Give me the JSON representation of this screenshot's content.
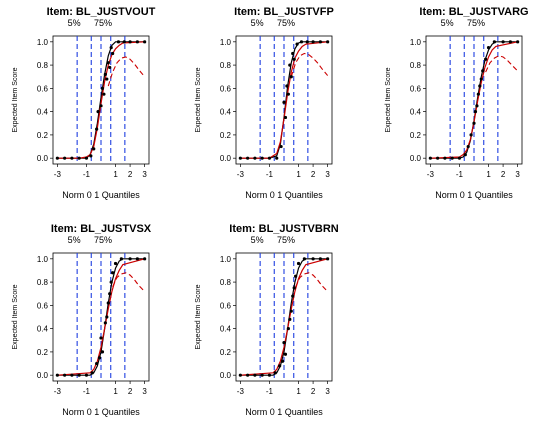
{
  "chart_data": [
    {
      "type": "line",
      "title": "Item:  BL_JUSTVOUT",
      "percentile_labels": [
        "5%",
        "75%"
      ],
      "xlabel": "Norm 0 1 Quantiles",
      "ylabel": "Expected Item Score",
      "x_ticks": [
        "-3",
        "-1",
        "1",
        "2",
        "3"
      ],
      "y_ticks": [
        "0.0",
        "0.2",
        "0.4",
        "0.6",
        "0.8",
        "1.0"
      ],
      "xlim": [
        -3.3,
        3.3
      ],
      "ylim": [
        -0.05,
        1.05
      ],
      "quantile_lines": [
        -1.64,
        -0.67,
        0.0,
        0.67,
        1.64
      ],
      "series": [
        {
          "name": "",
          "color": "#000000",
          "style": "solid",
          "x": [
            -3,
            -1.5,
            -1,
            -0.75,
            -0.5,
            -0.25,
            0,
            0.25,
            0.5,
            0.75,
            1,
            1.25,
            1.5,
            3
          ],
          "y": [
            0,
            0,
            0,
            0.03,
            0.12,
            0.3,
            0.52,
            0.72,
            0.88,
            0.97,
            1,
            1,
            1,
            1
          ]
        },
        {
          "name": "",
          "color": "#cc0000",
          "style": "solid",
          "x": [
            -3,
            -1.5,
            -1,
            -0.75,
            -0.5,
            -0.25,
            0,
            0.25,
            0.5,
            0.75,
            1,
            1.25,
            1.5,
            3
          ],
          "y": [
            0,
            0,
            0.01,
            0.03,
            0.1,
            0.26,
            0.47,
            0.66,
            0.8,
            0.89,
            0.94,
            0.97,
            0.99,
            1
          ]
        },
        {
          "name": "",
          "color": "#cc0000",
          "style": "dashed",
          "x": [
            0.5,
            0.8,
            1.1,
            1.4,
            1.7,
            2.0,
            2.3,
            2.6,
            3.0
          ],
          "y": [
            0.62,
            0.74,
            0.82,
            0.86,
            0.87,
            0.85,
            0.81,
            0.76,
            0.7
          ]
        },
        {
          "name": "",
          "color": "#000000",
          "style": "points",
          "x": [
            -3,
            -2.5,
            -2,
            -1.5,
            -1,
            -0.7,
            -0.5,
            -0.3,
            -0.2,
            0,
            0.1,
            0.2,
            0.3,
            0.4,
            0.5,
            0.6,
            0.7,
            0.8,
            1.2,
            1.6,
            2,
            2.5,
            3
          ],
          "y": [
            0,
            0,
            0,
            0,
            0,
            0.02,
            0.08,
            0.25,
            0.4,
            0.45,
            0.6,
            0.55,
            0.72,
            0.68,
            0.82,
            0.78,
            0.95,
            0.9,
            1,
            1,
            1,
            1,
            1
          ]
        }
      ]
    },
    {
      "type": "line",
      "title": "Item:  BL_JUSTVFP",
      "percentile_labels": [
        "5%",
        "75%"
      ],
      "xlabel": "Norm 0 1 Quantiles",
      "ylabel": "Expected Item Score",
      "x_ticks": [
        "-3",
        "-1",
        "1",
        "2",
        "3"
      ],
      "y_ticks": [
        "0.0",
        "0.2",
        "0.4",
        "0.6",
        "0.8",
        "1.0"
      ],
      "xlim": [
        -3.3,
        3.3
      ],
      "ylim": [
        -0.05,
        1.05
      ],
      "quantile_lines": [
        -1.64,
        -0.67,
        0.0,
        0.67,
        1.64
      ],
      "series": [
        {
          "name": "",
          "color": "#000000",
          "style": "solid",
          "x": [
            -3,
            -1,
            -0.5,
            -0.25,
            0,
            0.25,
            0.5,
            0.75,
            1,
            1.25,
            1.5,
            3
          ],
          "y": [
            0,
            0,
            0.02,
            0.12,
            0.35,
            0.62,
            0.82,
            0.94,
            0.99,
            1,
            1,
            1
          ]
        },
        {
          "name": "",
          "color": "#cc0000",
          "style": "solid",
          "x": [
            -3,
            -1,
            -0.5,
            -0.25,
            0,
            0.25,
            0.5,
            0.75,
            1,
            1.25,
            1.5,
            3
          ],
          "y": [
            0,
            0,
            0.04,
            0.14,
            0.34,
            0.56,
            0.74,
            0.86,
            0.92,
            0.96,
            0.98,
            1
          ]
        },
        {
          "name": "",
          "color": "#cc0000",
          "style": "dashed",
          "x": [
            0.5,
            0.8,
            1.1,
            1.4,
            1.7,
            2.0,
            2.3,
            2.6,
            3.0
          ],
          "y": [
            0.7,
            0.82,
            0.88,
            0.9,
            0.89,
            0.86,
            0.82,
            0.77,
            0.71
          ]
        },
        {
          "name": "",
          "color": "#000000",
          "style": "points",
          "x": [
            -3,
            -2.5,
            -2,
            -1.5,
            -1,
            -0.5,
            -0.2,
            0,
            0.1,
            0.2,
            0.3,
            0.4,
            0.5,
            0.6,
            0.7,
            0.9,
            1.2,
            1.6,
            2,
            2.5,
            3
          ],
          "y": [
            0,
            0,
            0,
            0,
            0,
            0,
            0.1,
            0.48,
            0.35,
            0.62,
            0.55,
            0.8,
            0.7,
            0.9,
            0.85,
            0.98,
            1,
            1,
            1,
            1,
            1
          ]
        }
      ]
    },
    {
      "type": "line",
      "title": "Item:  BL_JUSTVARG",
      "percentile_labels": [
        "5%",
        "75%"
      ],
      "xlabel": "Norm 0 1 Quantiles",
      "ylabel": "Expected Item Score",
      "x_ticks": [
        "-3",
        "-1",
        "1",
        "2",
        "3"
      ],
      "y_ticks": [
        "0.0",
        "0.2",
        "0.4",
        "0.6",
        "0.8",
        "1.0"
      ],
      "xlim": [
        -3.3,
        3.3
      ],
      "ylim": [
        -0.05,
        1.05
      ],
      "quantile_lines": [
        -1.64,
        -0.67,
        0.0,
        0.67,
        1.64
      ],
      "series": [
        {
          "name": "",
          "color": "#000000",
          "style": "solid",
          "x": [
            -3,
            -1,
            -0.75,
            -0.5,
            -0.25,
            0,
            0.25,
            0.5,
            0.75,
            1,
            1.25,
            1.5,
            3
          ],
          "y": [
            0,
            0,
            0.01,
            0.05,
            0.15,
            0.32,
            0.52,
            0.7,
            0.84,
            0.93,
            0.98,
            1,
            1
          ]
        },
        {
          "name": "",
          "color": "#cc0000",
          "style": "solid",
          "x": [
            -3,
            -1,
            -0.75,
            -0.5,
            -0.25,
            0,
            0.25,
            0.5,
            0.75,
            1,
            1.25,
            1.5,
            3
          ],
          "y": [
            0,
            0.01,
            0.03,
            0.07,
            0.16,
            0.31,
            0.49,
            0.65,
            0.78,
            0.87,
            0.93,
            0.96,
            1
          ]
        },
        {
          "name": "",
          "color": "#cc0000",
          "style": "dashed",
          "x": [
            0.8,
            1.1,
            1.4,
            1.7,
            2.0,
            2.3,
            2.6,
            3.0
          ],
          "y": [
            0.74,
            0.82,
            0.86,
            0.88,
            0.87,
            0.84,
            0.8,
            0.75
          ]
        },
        {
          "name": "",
          "color": "#000000",
          "style": "points",
          "x": [
            -3,
            -2.5,
            -2,
            -1.5,
            -1,
            -0.6,
            -0.4,
            -0.2,
            0,
            0.1,
            0.2,
            0.3,
            0.4,
            0.5,
            0.6,
            0.8,
            1,
            1.4,
            2,
            2.5,
            3
          ],
          "y": [
            0,
            0,
            0,
            0,
            0,
            0.03,
            0.1,
            0.2,
            0.3,
            0.4,
            0.45,
            0.55,
            0.62,
            0.68,
            0.75,
            0.85,
            0.95,
            1,
            1,
            1,
            1
          ]
        }
      ]
    },
    {
      "type": "line",
      "title": "Item:  BL_JUSTVSX",
      "percentile_labels": [
        "5%",
        "75%"
      ],
      "xlabel": "Norm 0 1 Quantiles",
      "ylabel": "Expected Item Score",
      "x_ticks": [
        "-3",
        "-1",
        "1",
        "2",
        "3"
      ],
      "y_ticks": [
        "0.0",
        "0.2",
        "0.4",
        "0.6",
        "0.8",
        "1.0"
      ],
      "xlim": [
        -3.3,
        3.3
      ],
      "ylim": [
        -0.05,
        1.05
      ],
      "quantile_lines": [
        -1.64,
        -0.67,
        0.0,
        0.67,
        1.64
      ],
      "series": [
        {
          "name": "",
          "color": "#000000",
          "style": "solid",
          "x": [
            -3,
            -0.75,
            -0.5,
            -0.25,
            0,
            0.25,
            0.5,
            0.75,
            1,
            1.25,
            1.5,
            3
          ],
          "y": [
            0,
            0,
            0.02,
            0.08,
            0.2,
            0.4,
            0.62,
            0.8,
            0.92,
            0.98,
            1,
            1
          ]
        },
        {
          "name": "",
          "color": "#cc0000",
          "style": "solid",
          "x": [
            -3,
            -0.75,
            -0.5,
            -0.25,
            0,
            0.25,
            0.5,
            0.75,
            1,
            1.25,
            1.5,
            3
          ],
          "y": [
            0,
            0.02,
            0.05,
            0.12,
            0.24,
            0.4,
            0.57,
            0.72,
            0.83,
            0.9,
            0.95,
            1
          ]
        },
        {
          "name": "",
          "color": "#cc0000",
          "style": "dashed",
          "x": [
            0.8,
            1.1,
            1.4,
            1.7,
            2.0,
            2.3,
            2.6,
            3.0
          ],
          "y": [
            0.76,
            0.84,
            0.87,
            0.88,
            0.86,
            0.82,
            0.77,
            0.72
          ]
        },
        {
          "name": "",
          "color": "#000000",
          "style": "points",
          "x": [
            -3,
            -2.5,
            -2,
            -1.5,
            -1,
            -0.6,
            -0.3,
            -0.1,
            0,
            0.1,
            0.3,
            0.4,
            0.5,
            0.6,
            0.7,
            0.8,
            1,
            1.4,
            2,
            2.5,
            3
          ],
          "y": [
            0,
            0,
            0,
            0,
            0,
            0.02,
            0.1,
            0.15,
            0.32,
            0.2,
            0.45,
            0.5,
            0.62,
            0.7,
            0.8,
            0.88,
            0.96,
            1,
            1,
            1,
            1
          ]
        }
      ]
    },
    {
      "type": "line",
      "title": "Item:  BL_JUSTVBRN",
      "percentile_labels": [
        "5%",
        "75%"
      ],
      "xlabel": "Norm 0 1 Quantiles",
      "ylabel": "Expected Item Score",
      "x_ticks": [
        "-3",
        "-1",
        "1",
        "2",
        "3"
      ],
      "y_ticks": [
        "0.0",
        "0.2",
        "0.4",
        "0.6",
        "0.8",
        "1.0"
      ],
      "xlim": [
        -3.3,
        3.3
      ],
      "ylim": [
        -0.05,
        1.05
      ],
      "quantile_lines": [
        -1.64,
        -0.67,
        0.0,
        0.67,
        1.64
      ],
      "series": [
        {
          "name": "",
          "color": "#000000",
          "style": "solid",
          "x": [
            -3,
            -0.75,
            -0.5,
            -0.25,
            0,
            0.25,
            0.5,
            0.75,
            1,
            1.25,
            1.5,
            3
          ],
          "y": [
            0,
            0,
            0.02,
            0.08,
            0.2,
            0.4,
            0.62,
            0.8,
            0.92,
            0.98,
            1,
            1
          ]
        },
        {
          "name": "",
          "color": "#cc0000",
          "style": "solid",
          "x": [
            -3,
            -0.75,
            -0.5,
            -0.25,
            0,
            0.25,
            0.5,
            0.75,
            1,
            1.25,
            1.5,
            3
          ],
          "y": [
            0,
            0.02,
            0.05,
            0.12,
            0.24,
            0.4,
            0.57,
            0.72,
            0.83,
            0.9,
            0.95,
            1
          ]
        },
        {
          "name": "",
          "color": "#cc0000",
          "style": "dashed",
          "x": [
            0.8,
            1.1,
            1.4,
            1.7,
            2.0,
            2.3,
            2.6,
            3.0
          ],
          "y": [
            0.76,
            0.84,
            0.87,
            0.88,
            0.86,
            0.82,
            0.77,
            0.72
          ]
        },
        {
          "name": "",
          "color": "#000000",
          "style": "points",
          "x": [
            -3,
            -2.5,
            -2,
            -1.5,
            -1,
            -0.6,
            -0.3,
            -0.1,
            0,
            0.1,
            0.3,
            0.4,
            0.5,
            0.6,
            0.7,
            0.8,
            1,
            1.4,
            2,
            2.5,
            3
          ],
          "y": [
            0,
            0,
            0,
            0,
            0,
            0.02,
            0.08,
            0.12,
            0.28,
            0.18,
            0.4,
            0.48,
            0.55,
            0.68,
            0.75,
            0.85,
            0.96,
            1,
            1,
            1,
            1
          ]
        }
      ]
    }
  ]
}
